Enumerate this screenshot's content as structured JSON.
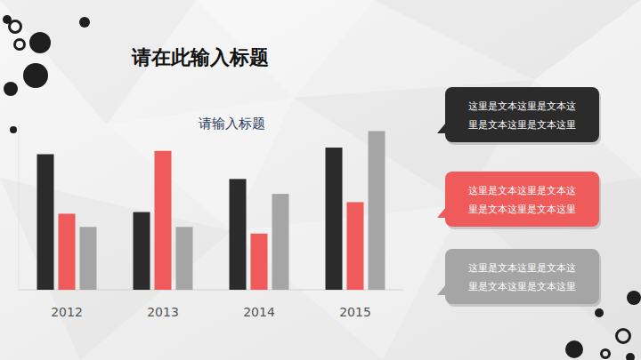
{
  "title": "请在此输入标题",
  "chart_data": {
    "type": "bar",
    "title": "请输入标题",
    "categories": [
      "2012",
      "2013",
      "2014",
      "2015"
    ],
    "series": [
      {
        "color": "#2b2b2b",
        "values": [
          82,
          47,
          67,
          86
        ]
      },
      {
        "color": "#ef5b5b",
        "values": [
          46,
          84,
          34,
          53
        ]
      },
      {
        "color": "#a5a5a5",
        "values": [
          38,
          38,
          58,
          96
        ]
      }
    ],
    "ylim": [
      0,
      100
    ],
    "tick_labels": "x",
    "grid": false
  },
  "callouts": [
    {
      "color": "#2b2b2b",
      "lines": [
        "这里是文本这里是文本这",
        "里是文本这里是文本这里"
      ]
    },
    {
      "color": "#ef5b5b",
      "lines": [
        "这里是文本这里是文本这",
        "里是文本这里是文本这里"
      ]
    },
    {
      "color": "#a5a5a5",
      "lines": [
        "这里是文本这里是文本这",
        "里是文本这里是文本这里"
      ]
    }
  ]
}
